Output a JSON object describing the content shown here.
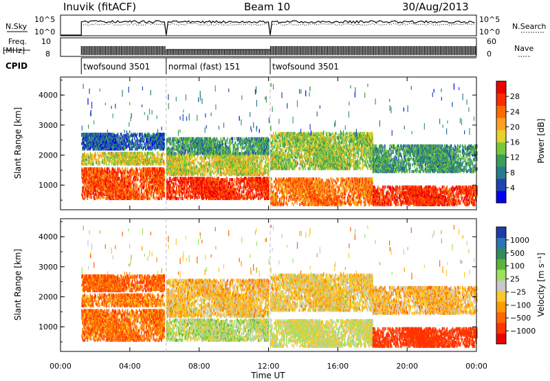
{
  "header": {
    "station": "Inuvik (fitACF)",
    "beam": "Beam 10",
    "date": "30/Aug/2013"
  },
  "strip_labels": {
    "nsky": "N.Sky",
    "nsky_top": "10^5",
    "nsky_bottom": "10^0",
    "nsearch": "N.Search",
    "nsearch_top": "10^5",
    "nsearch_bottom": "10^0",
    "freq": "Freq.",
    "freq_unit": "[MHz]",
    "freq_top": "10",
    "freq_bottom": "8",
    "nave": "Nave",
    "nave_top": "60",
    "nave_bottom": "0",
    "cpid": "CPID"
  },
  "cpid_segments": [
    {
      "label": "twofsound 3501",
      "start_hour": 1.2
    },
    {
      "label": "normal (fast) 151",
      "start_hour": 6.1
    },
    {
      "label": "twofsound 3501",
      "start_hour": 12.1
    }
  ],
  "x_axis": {
    "title": "Time UT",
    "ticks": [
      "00:00",
      "04:00",
      "08:00",
      "12:00",
      "16:00",
      "20:00",
      "00:00"
    ],
    "range_hours": [
      0,
      24
    ]
  },
  "y_axis": {
    "title": "Slant Range [km]",
    "ticks": [
      "1000",
      "2000",
      "3000",
      "4000"
    ],
    "range_km": [
      180,
      4600
    ]
  },
  "power_colorbar": {
    "title": "Power [dB]",
    "ticks": [
      "4",
      "8",
      "12",
      "16",
      "20",
      "24",
      "28"
    ],
    "colors": [
      "#0000f0",
      "#1c44b4",
      "#2a7a8c",
      "#3a9d5a",
      "#78c83c",
      "#e6d22a",
      "#ffa01e",
      "#ff6a00",
      "#ff2a00",
      "#ee0000"
    ]
  },
  "velocity_colorbar": {
    "title": "Velocity [m s⁻¹]",
    "ticks": [
      "1000",
      "500",
      "100",
      "25",
      "−25",
      "−100",
      "−500",
      "−1000"
    ],
    "colors": [
      "#1e3ca8",
      "#2c74b4",
      "#338a5a",
      "#58b43c",
      "#9ee05a",
      "#c8c8c8",
      "#ffc828",
      "#ff9a00",
      "#ff6400",
      "#ff3200",
      "#ee0000"
    ]
  },
  "chart_data": {
    "type": "heatmap",
    "panels": [
      "Power [dB]",
      "Velocity [m s⁻¹]"
    ],
    "mode_change_hours": [
      6.1,
      12.1
    ],
    "echo_bands": [
      {
        "start": 1.2,
        "end": 6.0,
        "range_min": 500,
        "range_max": 1500,
        "power_db": 26,
        "velocity": -70
      },
      {
        "start": 1.2,
        "end": 6.0,
        "range_min": 1650,
        "range_max": 2050,
        "power_db": 18,
        "velocity": -60
      },
      {
        "start": 1.2,
        "end": 6.0,
        "range_min": 2150,
        "range_max": 2650,
        "power_db": 8,
        "velocity": -80
      },
      {
        "start": 6.1,
        "end": 12.0,
        "range_min": 500,
        "range_max": 1200,
        "power_db": 28,
        "velocity": 60
      },
      {
        "start": 6.1,
        "end": 12.0,
        "range_min": 1300,
        "range_max": 2000,
        "power_db": 18,
        "velocity": 0
      },
      {
        "start": 6.1,
        "end": 12.0,
        "range_min": 2000,
        "range_max": 2500,
        "power_db": 12,
        "velocity": -10
      },
      {
        "start": 12.1,
        "end": 18.0,
        "range_min": 300,
        "range_max": 1200,
        "power_db": 24,
        "velocity": 40
      },
      {
        "start": 12.1,
        "end": 18.0,
        "range_min": 1500,
        "range_max": 2700,
        "power_db": 16,
        "velocity": 5
      },
      {
        "start": 18.0,
        "end": 24.0,
        "range_min": 300,
        "range_max": 900,
        "power_db": 28,
        "velocity": -150
      },
      {
        "start": 18.0,
        "end": 24.0,
        "range_min": 1400,
        "range_max": 2300,
        "power_db": 12,
        "velocity": -10
      }
    ],
    "sparse_echo_range_km": [
      2800,
      4400
    ]
  }
}
